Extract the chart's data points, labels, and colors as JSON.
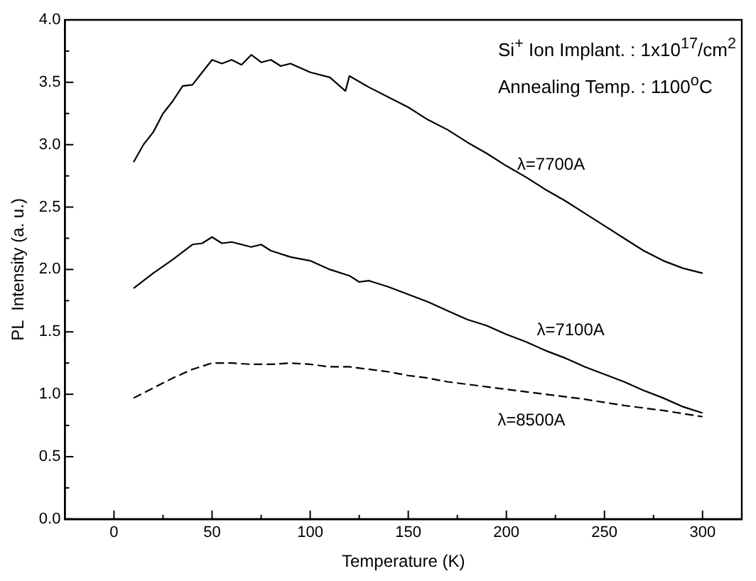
{
  "chart_data": {
    "type": "line",
    "xlabel": "Temperature (K)",
    "ylabel": "PL  Intensity (a. u.)",
    "xlim": [
      -25,
      320
    ],
    "ylim": [
      0,
      4
    ],
    "xticks": [
      0,
      {
        "value": 25,
        "label": null
      },
      50,
      {
        "value": 75,
        "label": null
      },
      100,
      {
        "value": 125,
        "label": null
      },
      150,
      {
        "value": 175,
        "label": null
      },
      200,
      {
        "value": 225,
        "label": null
      },
      250,
      {
        "value": 275,
        "label": null
      },
      300
    ],
    "yticks": [
      {
        "value": 0,
        "label": "0.0"
      },
      {
        "value": 0.25,
        "label": null
      },
      {
        "value": 0.5,
        "label": "0.5"
      },
      {
        "value": 0.75,
        "label": null
      },
      {
        "value": 1,
        "label": "1.0"
      },
      {
        "value": 1.25,
        "label": null
      },
      {
        "value": 1.5,
        "label": "1.5"
      },
      {
        "value": 1.75,
        "label": null
      },
      {
        "value": 2,
        "label": "2.0"
      },
      {
        "value": 2.25,
        "label": null
      },
      {
        "value": 2.5,
        "label": "2.5"
      },
      {
        "value": 2.75,
        "label": null
      },
      {
        "value": 3,
        "label": "3.0"
      },
      {
        "value": 3.25,
        "label": null
      },
      {
        "value": 3.5,
        "label": "3.5"
      },
      {
        "value": 3.75,
        "label": null
      },
      {
        "value": 4,
        "label": "4.0"
      }
    ],
    "grid": false,
    "legend": false,
    "marker": "none",
    "annotations": [
      "Si$^{+}$ Ion Implant. : 1x10$^{17}$/cm$^{2}$",
      "Annealing Temp. : 1100$^{o}$C"
    ],
    "series": [
      {
        "name": "λ=7700A",
        "color": "#000000",
        "line_style": "solid",
        "x": [
          10,
          15,
          20,
          25,
          30,
          35,
          40,
          45,
          50,
          55,
          60,
          65,
          70,
          75,
          80,
          85,
          90,
          100,
          110,
          118,
          120,
          130,
          140,
          150,
          160,
          170,
          180,
          190,
          200,
          210,
          220,
          230,
          240,
          250,
          260,
          270,
          280,
          290,
          300
        ],
        "values": [
          2.86,
          3.0,
          3.1,
          3.25,
          3.35,
          3.47,
          3.48,
          3.58,
          3.68,
          3.65,
          3.68,
          3.64,
          3.72,
          3.66,
          3.68,
          3.63,
          3.65,
          3.58,
          3.54,
          3.43,
          3.55,
          3.46,
          3.38,
          3.3,
          3.2,
          3.12,
          3.02,
          2.93,
          2.83,
          2.74,
          2.64,
          2.55,
          2.45,
          2.35,
          2.25,
          2.15,
          2.07,
          2.01,
          1.97
        ]
      },
      {
        "name": "λ=7100A",
        "color": "#000000",
        "line_style": "solid",
        "x": [
          10,
          20,
          30,
          40,
          45,
          50,
          55,
          60,
          65,
          70,
          75,
          80,
          90,
          100,
          110,
          120,
          125,
          130,
          140,
          150,
          160,
          170,
          180,
          190,
          200,
          210,
          220,
          230,
          240,
          250,
          260,
          270,
          280,
          290,
          300
        ],
        "values": [
          1.85,
          1.97,
          2.08,
          2.2,
          2.21,
          2.26,
          2.21,
          2.22,
          2.2,
          2.18,
          2.2,
          2.15,
          2.1,
          2.07,
          2.0,
          1.95,
          1.9,
          1.91,
          1.86,
          1.8,
          1.74,
          1.67,
          1.6,
          1.55,
          1.48,
          1.42,
          1.35,
          1.29,
          1.22,
          1.16,
          1.1,
          1.03,
          0.97,
          0.9,
          0.85
        ]
      },
      {
        "name": "λ=8500A",
        "color": "#000000",
        "line_style": "dashed",
        "x": [
          10,
          20,
          30,
          40,
          50,
          60,
          70,
          80,
          90,
          100,
          110,
          120,
          130,
          140,
          150,
          160,
          170,
          180,
          190,
          200,
          220,
          240,
          260,
          280,
          300
        ],
        "values": [
          0.97,
          1.05,
          1.13,
          1.2,
          1.25,
          1.25,
          1.24,
          1.24,
          1.25,
          1.24,
          1.22,
          1.22,
          1.2,
          1.18,
          1.15,
          1.13,
          1.1,
          1.08,
          1.06,
          1.04,
          1.0,
          0.96,
          0.91,
          0.87,
          0.82
        ]
      }
    ]
  }
}
